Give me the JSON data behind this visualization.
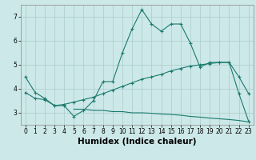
{
  "xlabel": "Humidex (Indice chaleur)",
  "x_values": [
    0,
    1,
    2,
    3,
    4,
    5,
    6,
    7,
    8,
    9,
    10,
    11,
    12,
    13,
    14,
    15,
    16,
    17,
    18,
    19,
    20,
    21,
    22,
    23
  ],
  "line1_y": [
    4.5,
    3.85,
    3.6,
    3.3,
    3.3,
    2.85,
    3.1,
    3.5,
    4.3,
    4.3,
    5.5,
    6.5,
    7.3,
    6.7,
    6.4,
    6.7,
    6.7,
    5.9,
    4.9,
    5.1,
    5.1,
    5.1,
    3.8,
    2.65
  ],
  "line2_y": [
    3.85,
    3.6,
    3.55,
    3.3,
    3.35,
    3.45,
    3.55,
    3.65,
    3.8,
    3.95,
    4.1,
    4.25,
    4.4,
    4.5,
    4.6,
    4.75,
    4.85,
    4.95,
    5.0,
    5.05,
    5.1,
    5.1,
    4.5,
    3.8
  ],
  "line3_y": [
    null,
    null,
    null,
    null,
    null,
    3.15,
    3.15,
    3.1,
    3.1,
    3.05,
    3.05,
    3.0,
    3.0,
    2.98,
    2.95,
    2.93,
    2.9,
    2.85,
    2.82,
    2.78,
    2.75,
    2.72,
    2.68,
    2.62
  ],
  "line_color": "#1a7a6e",
  "bg_color": "#cce8e8",
  "grid_color": "#aacccc",
  "ylim": [
    2.5,
    7.5
  ],
  "xlim": [
    -0.5,
    23.5
  ],
  "yticks": [
    3,
    4,
    5,
    6,
    7
  ],
  "xticks": [
    0,
    1,
    2,
    3,
    4,
    5,
    6,
    7,
    8,
    9,
    10,
    11,
    12,
    13,
    14,
    15,
    16,
    17,
    18,
    19,
    20,
    21,
    22,
    23
  ],
  "tick_fontsize": 5.5,
  "label_fontsize": 7.5
}
